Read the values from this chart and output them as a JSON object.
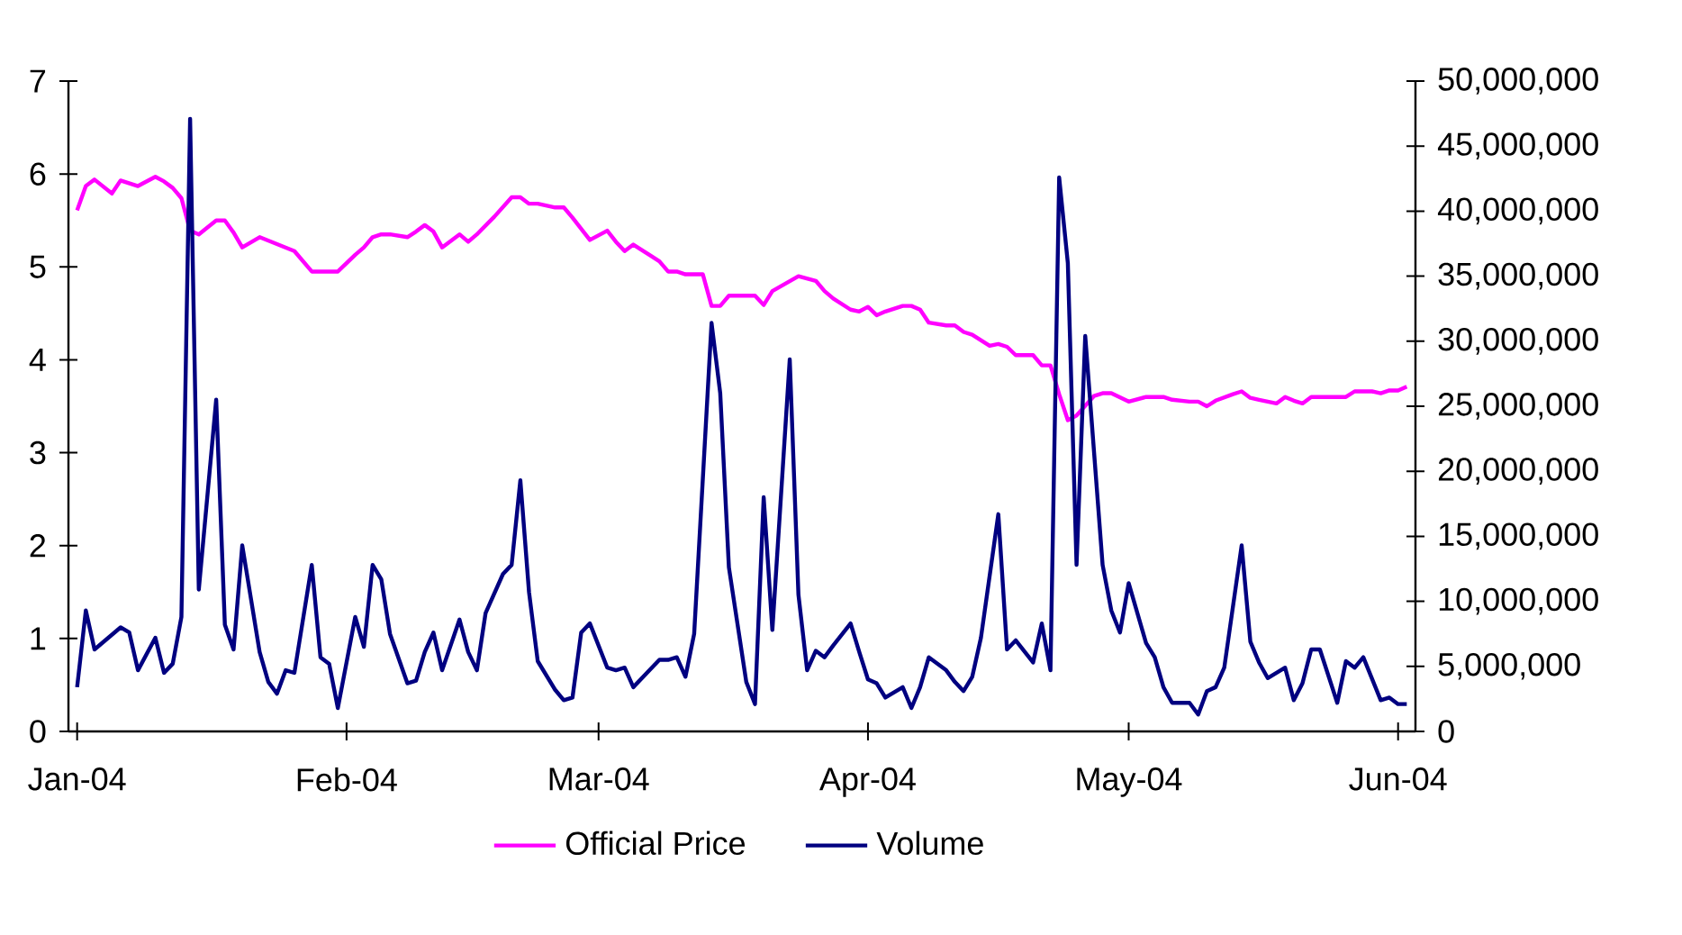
{
  "chart_data": {
    "type": "line",
    "xlim": [
      "2003-12-31",
      "2004-06-03"
    ],
    "xticks": [
      {
        "value": "2004-01-01",
        "label": "Jan-04"
      },
      {
        "value": "2004-02-01",
        "label": "Feb-04"
      },
      {
        "value": "2004-03-01",
        "label": "Mar-04"
      },
      {
        "value": "2004-04-01",
        "label": "Apr-04"
      },
      {
        "value": "2004-05-01",
        "label": "May-04"
      },
      {
        "value": "2004-06-01",
        "label": "Jun-04"
      }
    ],
    "ylim": [
      0,
      7
    ],
    "yticks": [
      0,
      1,
      2,
      3,
      4,
      5,
      6,
      7
    ],
    "y2lim": [
      0,
      50000000
    ],
    "y2ticks": [
      0,
      {
        "value": 5000000,
        "label": "5,000,000"
      },
      {
        "value": 10000000,
        "label": "10,000,000"
      },
      {
        "value": 15000000,
        "label": "15,000,000"
      },
      {
        "value": 20000000,
        "label": "20,000,000"
      },
      {
        "value": 25000000,
        "label": "25,000,000"
      },
      {
        "value": 30000000,
        "label": "30,000,000"
      },
      {
        "value": 35000000,
        "label": "35,000,000"
      },
      {
        "value": 40000000,
        "label": "40,000,000"
      },
      {
        "value": 45000000,
        "label": "45,000,000"
      },
      {
        "value": 50000000,
        "label": "50,000,000"
      }
    ],
    "legend": "bottom",
    "marker": "none",
    "line_style": "solid",
    "series": [
      {
        "name": "Official Price",
        "color": "#ff00ff",
        "x": [
          "2004-01-01",
          "2004-01-02",
          "2004-01-03",
          "2004-01-05",
          "2004-01-06",
          "2004-01-08",
          "2004-01-10",
          "2004-01-11",
          "2004-01-12",
          "2004-01-13",
          "2004-01-14",
          "2004-01-15",
          "2004-01-17",
          "2004-01-18",
          "2004-01-19",
          "2004-01-20",
          "2004-01-22",
          "2004-01-26",
          "2004-01-28",
          "2004-01-31",
          "2004-02-02",
          "2004-02-03",
          "2004-02-04",
          "2004-02-05",
          "2004-02-06",
          "2004-02-08",
          "2004-02-09",
          "2004-02-10",
          "2004-02-11",
          "2004-02-12",
          "2004-02-14",
          "2004-02-15",
          "2004-02-16",
          "2004-02-18",
          "2004-02-20",
          "2004-02-21",
          "2004-02-22",
          "2004-02-23",
          "2004-02-25",
          "2004-02-26",
          "2004-02-27",
          "2004-02-29",
          "2004-03-02",
          "2004-03-03",
          "2004-03-04",
          "2004-03-05",
          "2004-03-07",
          "2004-03-08",
          "2004-03-09",
          "2004-03-10",
          "2004-03-11",
          "2004-03-13",
          "2004-03-14",
          "2004-03-15",
          "2004-03-16",
          "2004-03-19",
          "2004-03-20",
          "2004-03-21",
          "2004-03-24",
          "2004-03-26",
          "2004-03-27",
          "2004-03-28",
          "2004-03-30",
          "2004-03-31",
          "2004-04-01",
          "2004-04-02",
          "2004-04-03",
          "2004-04-05",
          "2004-04-06",
          "2004-04-07",
          "2004-04-08",
          "2004-04-10",
          "2004-04-11",
          "2004-04-12",
          "2004-04-13",
          "2004-04-15",
          "2004-04-16",
          "2004-04-17",
          "2004-04-18",
          "2004-04-20",
          "2004-04-21",
          "2004-04-22",
          "2004-04-23",
          "2004-04-24",
          "2004-04-25",
          "2004-04-27",
          "2004-04-28",
          "2004-04-29",
          "2004-05-01",
          "2004-05-03",
          "2004-05-05",
          "2004-05-06",
          "2004-05-08",
          "2004-05-09",
          "2004-05-10",
          "2004-05-11",
          "2004-05-13",
          "2004-05-14",
          "2004-05-15",
          "2004-05-16",
          "2004-05-18",
          "2004-05-19",
          "2004-05-20",
          "2004-05-21",
          "2004-05-22",
          "2004-05-24",
          "2004-05-26",
          "2004-05-27",
          "2004-05-29",
          "2004-05-30",
          "2004-05-31",
          "2004-06-01",
          "2004-06-02"
        ],
        "values": [
          5.61,
          5.87,
          5.94,
          5.79,
          5.93,
          5.87,
          5.97,
          5.92,
          5.85,
          5.74,
          5.39,
          5.35,
          5.5,
          5.5,
          5.37,
          5.21,
          5.32,
          5.17,
          4.95,
          4.95,
          5.13,
          5.21,
          5.32,
          5.35,
          5.35,
          5.32,
          5.38,
          5.45,
          5.38,
          5.21,
          5.35,
          5.27,
          5.35,
          5.54,
          5.75,
          5.75,
          5.68,
          5.68,
          5.64,
          5.64,
          5.53,
          5.29,
          5.39,
          5.27,
          5.17,
          5.24,
          5.12,
          5.06,
          4.95,
          4.95,
          4.92,
          4.92,
          4.58,
          4.58,
          4.69,
          4.69,
          4.59,
          4.74,
          4.9,
          4.85,
          4.74,
          4.66,
          4.54,
          4.52,
          4.57,
          4.48,
          4.52,
          4.58,
          4.58,
          4.54,
          4.4,
          4.37,
          4.37,
          4.3,
          4.27,
          4.15,
          4.17,
          4.14,
          4.05,
          4.05,
          3.94,
          3.94,
          3.63,
          3.35,
          3.4,
          3.61,
          3.64,
          3.64,
          3.55,
          3.6,
          3.6,
          3.57,
          3.55,
          3.55,
          3.5,
          3.56,
          3.63,
          3.66,
          3.59,
          3.57,
          3.53,
          3.6,
          3.56,
          3.53,
          3.6,
          3.6,
          3.6,
          3.66,
          3.66,
          3.64,
          3.67,
          3.67,
          3.71
        ]
      },
      {
        "name": "Volume",
        "color": "#000080",
        "axis": "y2",
        "x": [
          "2004-01-01",
          "2004-01-02",
          "2004-01-03",
          "2004-01-06",
          "2004-01-07",
          "2004-01-08",
          "2004-01-10",
          "2004-01-11",
          "2004-01-12",
          "2004-01-13",
          "2004-01-14",
          "2004-01-15",
          "2004-01-17",
          "2004-01-18",
          "2004-01-19",
          "2004-01-20",
          "2004-01-22",
          "2004-01-23",
          "2004-01-24",
          "2004-01-25",
          "2004-01-26",
          "2004-01-28",
          "2004-01-29",
          "2004-01-30",
          "2004-01-31",
          "2004-02-02",
          "2004-02-03",
          "2004-02-04",
          "2004-02-05",
          "2004-02-06",
          "2004-02-08",
          "2004-02-09",
          "2004-02-10",
          "2004-02-11",
          "2004-02-12",
          "2004-02-14",
          "2004-02-15",
          "2004-02-16",
          "2004-02-17",
          "2004-02-19",
          "2004-02-20",
          "2004-02-21",
          "2004-02-22",
          "2004-02-23",
          "2004-02-25",
          "2004-02-26",
          "2004-02-27",
          "2004-02-28",
          "2004-02-29",
          "2004-03-02",
          "2004-03-03",
          "2004-03-04",
          "2004-03-05",
          "2004-03-08",
          "2004-03-09",
          "2004-03-10",
          "2004-03-11",
          "2004-03-12",
          "2004-03-14",
          "2004-03-15",
          "2004-03-16",
          "2004-03-18",
          "2004-03-19",
          "2004-03-20",
          "2004-03-21",
          "2004-03-23",
          "2004-03-24",
          "2004-03-25",
          "2004-03-26",
          "2004-03-27",
          "2004-03-28",
          "2004-03-30",
          "2004-03-31",
          "2004-04-01",
          "2004-04-02",
          "2004-04-03",
          "2004-04-05",
          "2004-04-06",
          "2004-04-07",
          "2004-04-08",
          "2004-04-10",
          "2004-04-11",
          "2004-04-12",
          "2004-04-13",
          "2004-04-14",
          "2004-04-16",
          "2004-04-17",
          "2004-04-18",
          "2004-04-20",
          "2004-04-21",
          "2004-04-22",
          "2004-04-23",
          "2004-04-24",
          "2004-04-25",
          "2004-04-26",
          "2004-04-28",
          "2004-04-29",
          "2004-04-30",
          "2004-05-01",
          "2004-05-03",
          "2004-05-04",
          "2004-05-05",
          "2004-05-06",
          "2004-05-08",
          "2004-05-09",
          "2004-05-10",
          "2004-05-11",
          "2004-05-12",
          "2004-05-14",
          "2004-05-15",
          "2004-05-16",
          "2004-05-17",
          "2004-05-19",
          "2004-05-20",
          "2004-05-21",
          "2004-05-22",
          "2004-05-23",
          "2004-05-25",
          "2004-05-26",
          "2004-05-27",
          "2004-05-28",
          "2004-05-30",
          "2004-05-31",
          "2004-06-01",
          "2004-06-02"
        ],
        "values": [
          3400000,
          9300000,
          6300000,
          8000000,
          7600000,
          4700000,
          7200000,
          4500000,
          5200000,
          8800000,
          47100000,
          10900000,
          25500000,
          8200000,
          6300000,
          14300000,
          6100000,
          3800000,
          2900000,
          4700000,
          4500000,
          12800000,
          5700000,
          5200000,
          1800000,
          8800000,
          6500000,
          12800000,
          11700000,
          7500000,
          3700000,
          3900000,
          6100000,
          7600000,
          4700000,
          8600000,
          6100000,
          4700000,
          9100000,
          12100000,
          12800000,
          19300000,
          10700000,
          5400000,
          3200000,
          2400000,
          2600000,
          7600000,
          8300000,
          4900000,
          4700000,
          4900000,
          3400000,
          5500000,
          5500000,
          5700000,
          4200000,
          7500000,
          31400000,
          26000000,
          12600000,
          3800000,
          2100000,
          18000000,
          7800000,
          28600000,
          10500000,
          4700000,
          6200000,
          5700000,
          6600000,
          8300000,
          6100000,
          4000000,
          3700000,
          2600000,
          3400000,
          1800000,
          3400000,
          5700000,
          4700000,
          3800000,
          3100000,
          4200000,
          7200000,
          16700000,
          6300000,
          7000000,
          5300000,
          8300000,
          4700000,
          42600000,
          36000000,
          12800000,
          30400000,
          12800000,
          9300000,
          7600000,
          11400000,
          6800000,
          5700000,
          3400000,
          2200000,
          2200000,
          1300000,
          3100000,
          3400000,
          4900000,
          14300000,
          6900000,
          5300000,
          4100000,
          4900000,
          2400000,
          3700000,
          6300000,
          6300000,
          2200000,
          5400000,
          4900000,
          5700000,
          2400000,
          2600000,
          2100000,
          2100000
        ]
      }
    ]
  }
}
